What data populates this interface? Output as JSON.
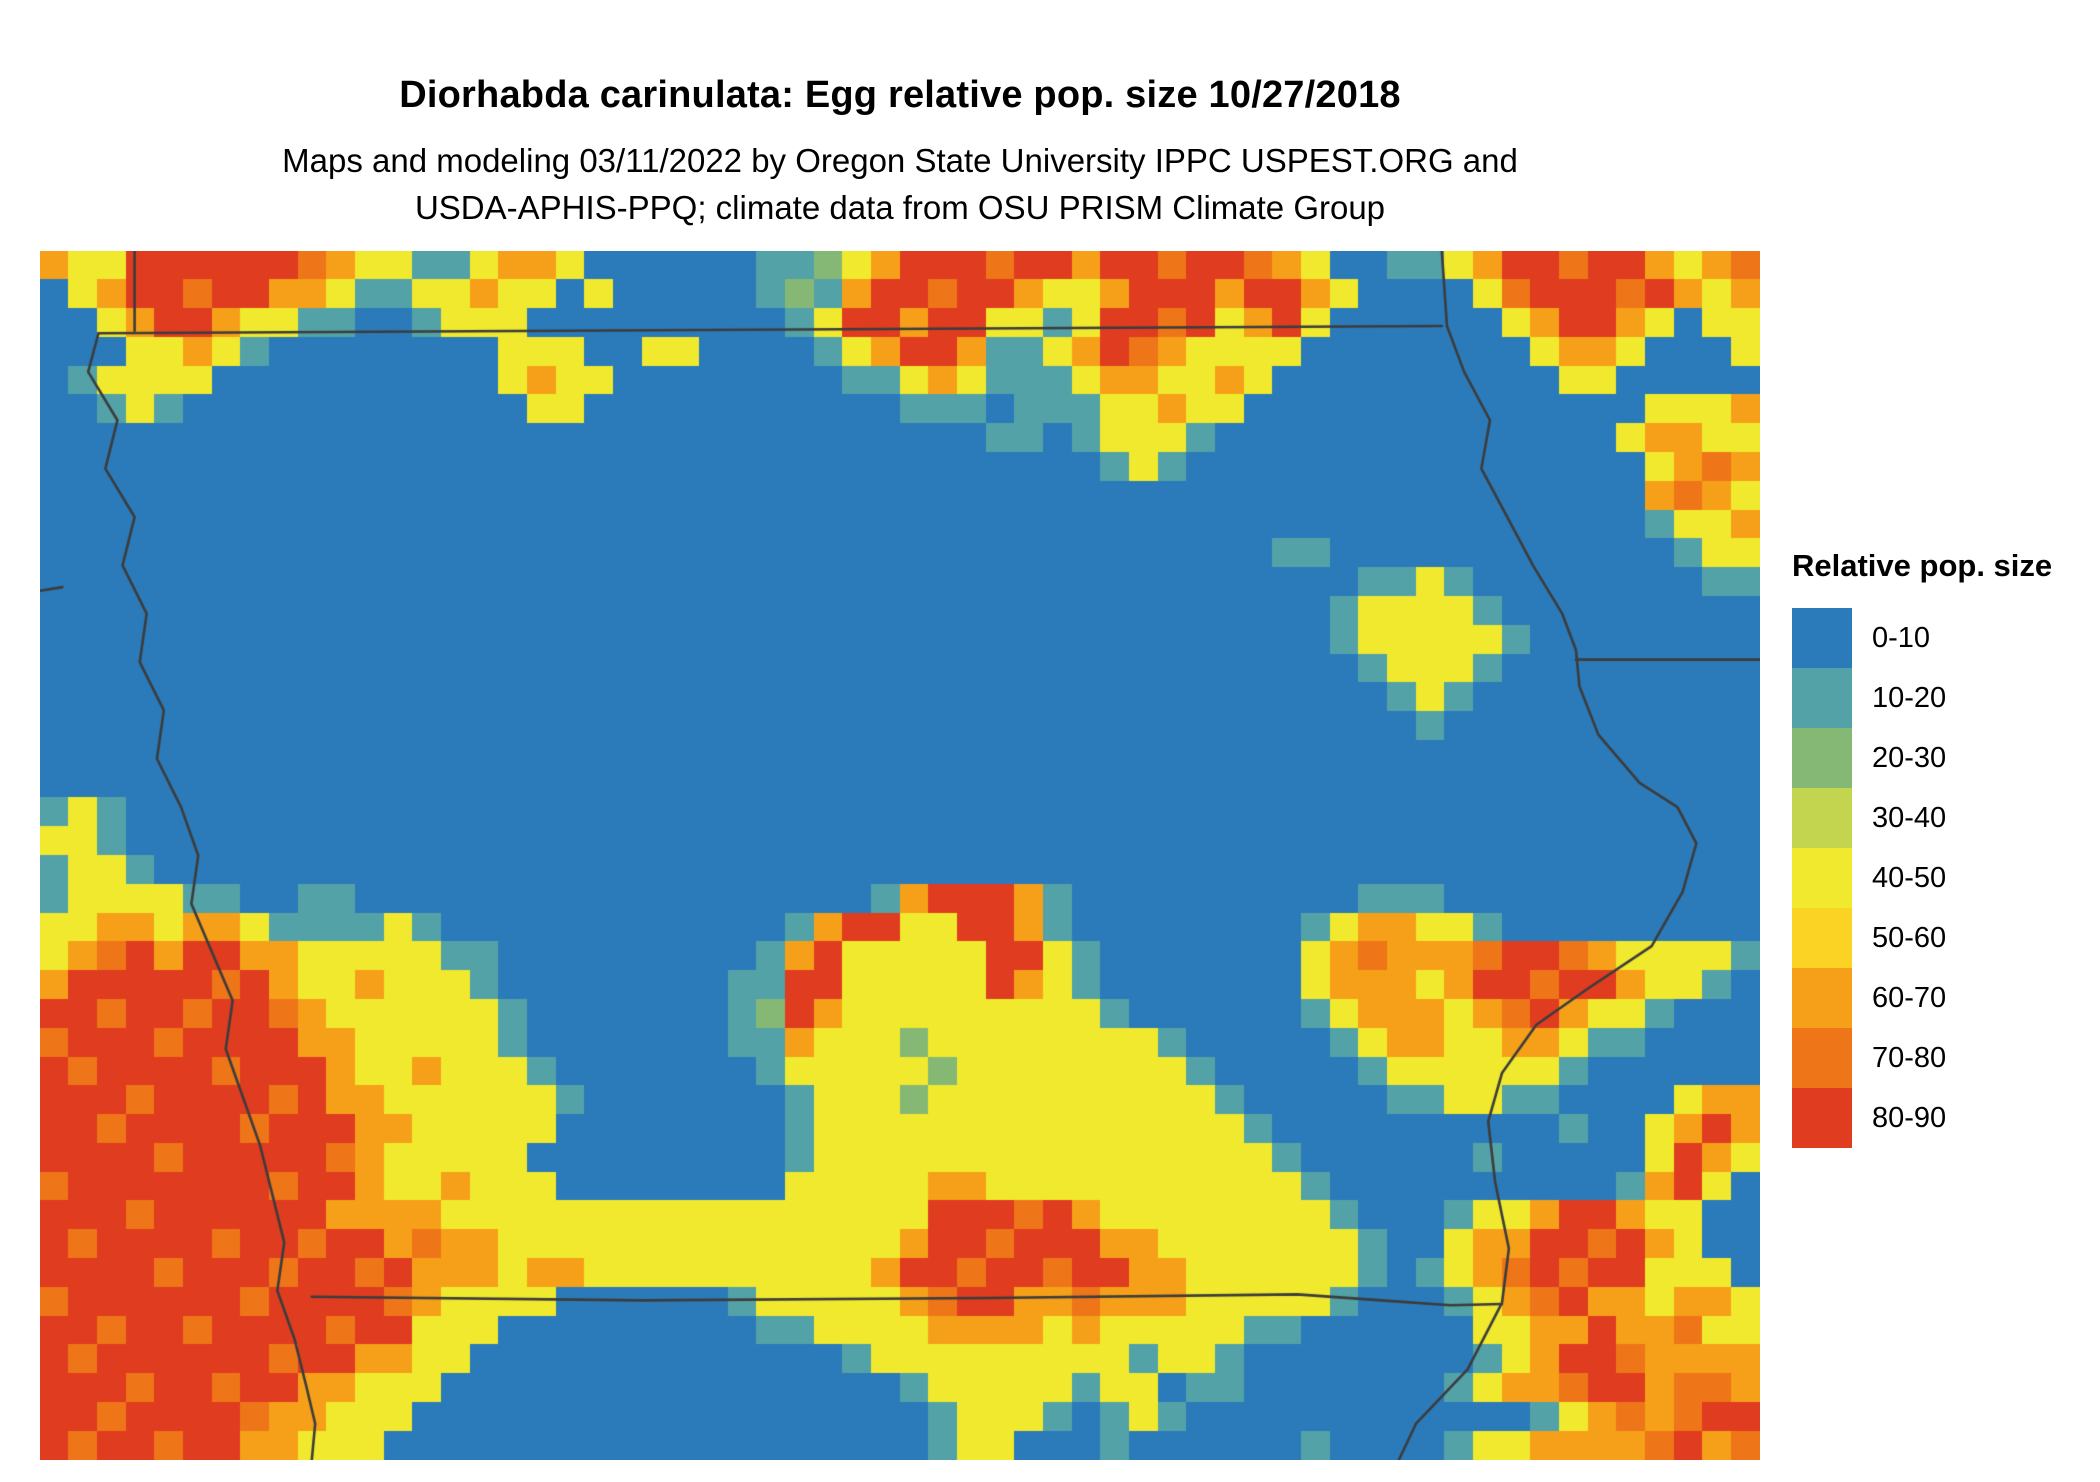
{
  "header": {
    "title": "Diorhabda carinulata: Egg relative pop. size 10/27/2018",
    "subtitle_line1": "Maps and modeling 03/11/2022 by Oregon State University IPPC USPEST.ORG and",
    "subtitle_line2": "USDA-APHIS-PPQ; climate data from OSU PRISM Climate Group"
  },
  "legend": {
    "title": "Relative pop. size",
    "items": [
      {
        "label": "0-10"
      },
      {
        "label": "10-20"
      },
      {
        "label": "20-30"
      },
      {
        "label": "30-40"
      },
      {
        "label": "40-50"
      },
      {
        "label": "50-60"
      },
      {
        "label": "60-70"
      },
      {
        "label": "70-80"
      },
      {
        "label": "80-90"
      }
    ]
  },
  "map": {
    "palette": [
      "#2B7BBA",
      "#53A2A7",
      "#86B875",
      "#C3D54E",
      "#F0E92D",
      "#FBD324",
      "#F6A019",
      "#EE7518",
      "#E03C20"
    ],
    "border_color": "#3C3C3C",
    "grid_cols": 60,
    "grid_rows": 42,
    "grid": [
      "644888888764411466400000011246888788688788764001146887886467",
      "046887886641144644040000012168878864468886886400004788878646",
      "004688644110014440000000001488688441488784684000000468864044",
      "000446410000000044400440000146886114687644440000000046640004",
      "014444000000000046440000000011464111466446400000000004400000",
      "001410000000000004400000000000111011144644000000000000004446",
      "000000000000000000000000000000000110144410000000000000046644",
      "000000000000000000000000000000000000014100000000000000004676",
      "000000000000000000000000000000000000000000000000000000006764",
      "000000000000000000000000000000000000000000000000000000001446",
      "000000000000000000000000000000000000000000011000000000000144",
      "000000000000000000000000000000000000000000000011410000000011",
      "000000000000000000000000000000000000000000000144441000000000",
      "000000000000000000000000000000000000000000000144444100000000",
      "000000000000000000000000000000000000000000000014441000000000",
      "000000000000000000000000000000000000000000000001410000000000",
      "000000000000000000000000000000000000000000000000100000000000",
      "000000000000000000000000000000000000000000000000000000000000",
      "000000000000000000000000000000000000000000000000000000000000",
      "141000000000000000000000000000000000000000000000000000000000",
      "441000000000000000000000000000000000000000000000000000000000",
      "144100000000000000000000000000000000000000000000000000000000",
      "144441100110000000000000000001688861000000000011100000000000",
      "446646641111410000000000001688448861000000001466441000000000",
      "467868866444441100000000016844444884100000004676667887644441",
      "688888786446444100000000118844444864100000004666468878864410",
      "887887887644444410000000128644444444410000001466646786441000",
      "788878888664444410000000116444244444444100000146644664110000",
      "878888788864464441000000014444424444444410000014444441000000",
      "888788887866444444100000001444244444444441000001144110000466",
      "887888878886644444000000001444444444444444100000000001004686",
      "888878888876444440000000001444444444444444410000001000004864",
      "788888887886446444000000004444466444444444441000000000016840",
      "888788888866664444444444444444488878644444444100014468864400",
      "878888788788676644444444444444688788866444444410046688786400",
      "888878887887866646644444444446887887886644444410146787884440",
      "788888878888764444000000144444678866766644444100014678664664",
      "887887888878844400000000011444466664644444110000004466866744",
      "878888887886644000000000000014444444441441000000001468876666",
      "888788788664440000000000000000144444144011000000014667886776",
      "887888876644400000000000000000014441014100000000000014676788",
      "878878866444000000000000000000014400010000001000014466667867"
    ],
    "borders": [
      [
        [
          0.055,
          0.0
        ],
        [
          0.055,
          0.066
        ]
      ],
      [
        [
          0.034,
          0.068
        ],
        [
          0.815,
          0.062
        ]
      ],
      [
        [
          0.034,
          0.068
        ],
        [
          0.028,
          0.1
        ],
        [
          0.045,
          0.14
        ],
        [
          0.038,
          0.18
        ],
        [
          0.055,
          0.22
        ],
        [
          0.048,
          0.26
        ],
        [
          0.062,
          0.3
        ],
        [
          0.058,
          0.34
        ],
        [
          0.072,
          0.38
        ],
        [
          0.068,
          0.42
        ],
        [
          0.082,
          0.46
        ],
        [
          0.092,
          0.5
        ],
        [
          0.088,
          0.54
        ],
        [
          0.1,
          0.58
        ],
        [
          0.112,
          0.62
        ],
        [
          0.108,
          0.66
        ],
        [
          0.118,
          0.7
        ],
        [
          0.128,
          0.74
        ],
        [
          0.135,
          0.78
        ],
        [
          0.142,
          0.82
        ],
        [
          0.138,
          0.86
        ],
        [
          0.148,
          0.9
        ],
        [
          0.155,
          0.94
        ],
        [
          0.16,
          0.97
        ],
        [
          0.158,
          1.0
        ]
      ],
      [
        [
          0.158,
          0.865
        ],
        [
          0.35,
          0.868
        ],
        [
          0.55,
          0.866
        ],
        [
          0.731,
          0.863
        ],
        [
          0.78,
          0.868
        ],
        [
          0.82,
          0.872
        ],
        [
          0.85,
          0.871
        ]
      ],
      [
        [
          0.815,
          0.0
        ],
        [
          0.818,
          0.062
        ],
        [
          0.828,
          0.1
        ],
        [
          0.843,
          0.14
        ],
        [
          0.838,
          0.18
        ],
        [
          0.853,
          0.22
        ],
        [
          0.868,
          0.26
        ],
        [
          0.885,
          0.3
        ],
        [
          0.893,
          0.33
        ],
        [
          0.895,
          0.36
        ],
        [
          0.906,
          0.4
        ],
        [
          0.93,
          0.44
        ],
        [
          0.952,
          0.46
        ],
        [
          0.963,
          0.49
        ],
        [
          0.955,
          0.53
        ],
        [
          0.937,
          0.575
        ],
        [
          0.9,
          0.61
        ],
        [
          0.87,
          0.64
        ],
        [
          0.85,
          0.68
        ],
        [
          0.842,
          0.72
        ],
        [
          0.846,
          0.77
        ],
        [
          0.854,
          0.825
        ],
        [
          0.85,
          0.87
        ],
        [
          0.83,
          0.925
        ],
        [
          0.8,
          0.97
        ],
        [
          0.79,
          1.0
        ]
      ],
      [
        [
          0.893,
          0.338
        ],
        [
          1.0,
          0.338
        ]
      ],
      [
        [
          0.0,
          0.281
        ],
        [
          0.013,
          0.278
        ]
      ]
    ]
  }
}
